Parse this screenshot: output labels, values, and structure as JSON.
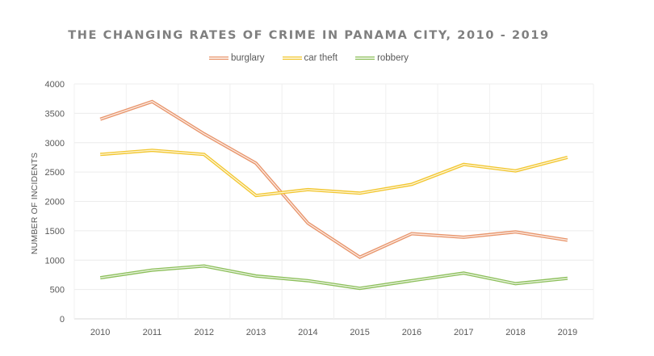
{
  "chart_data": {
    "type": "line",
    "title": "THE CHANGING RATES OF CRIME IN PANAMA CITY, 2010 - 2019",
    "xlabel": "",
    "ylabel": "NUMBER OF INCIDENTS",
    "categories": [
      "2010",
      "2011",
      "2012",
      "2013",
      "2014",
      "2015",
      "2016",
      "2017",
      "2018",
      "2019"
    ],
    "ylim": [
      0,
      4000
    ],
    "yticks": [
      0,
      500,
      1000,
      1500,
      2000,
      2500,
      3000,
      3500,
      4000
    ],
    "grid": true,
    "legend_position": "top-center",
    "series": [
      {
        "name": "burglary",
        "color": "#E8946A",
        "values": [
          3400,
          3700,
          3150,
          2650,
          1630,
          1050,
          1450,
          1390,
          1480,
          1340
        ]
      },
      {
        "name": "car theft",
        "color": "#F2C62E",
        "values": [
          2800,
          2870,
          2800,
          2100,
          2200,
          2140,
          2290,
          2630,
          2520,
          2750
        ]
      },
      {
        "name": "robbery",
        "color": "#8CBF5A",
        "values": [
          700,
          830,
          900,
          730,
          650,
          520,
          650,
          780,
          600,
          690
        ]
      }
    ]
  }
}
